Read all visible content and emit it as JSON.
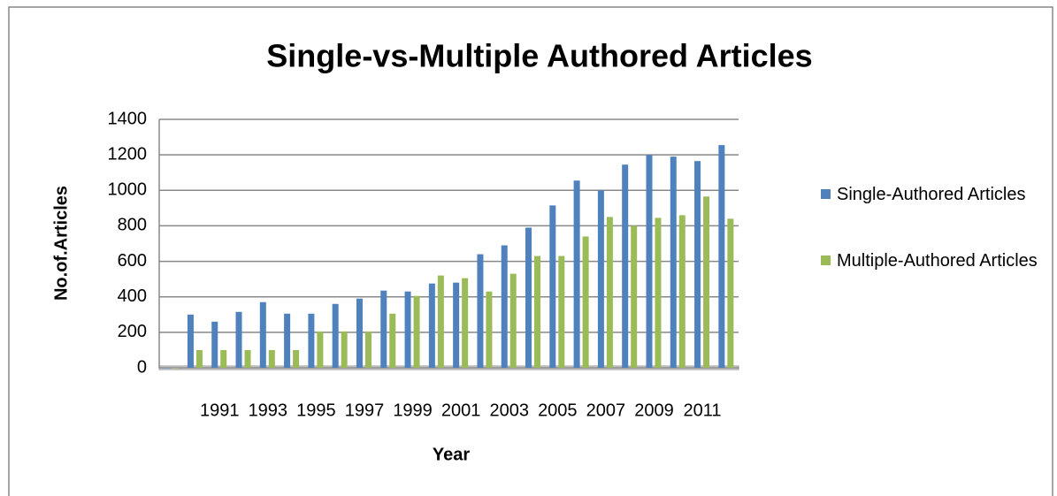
{
  "chart_data": {
    "type": "bar",
    "title": "Single-vs-Multiple Authored Articles",
    "x_label": "Year",
    "y_label": "No.of.Articles",
    "categories": [
      null,
      null,
      "1991",
      null,
      "1993",
      null,
      "1995",
      null,
      "1997",
      null,
      "1999",
      null,
      "2001",
      null,
      "2003",
      null,
      "2005",
      null,
      "2007",
      null,
      "2009",
      null,
      "2011",
      null
    ],
    "series": [
      {
        "name": "Single-Authored Articles",
        "color": "#4f81bd",
        "values": [
          0,
          300,
          260,
          315,
          370,
          305,
          305,
          360,
          390,
          435,
          430,
          475,
          480,
          640,
          690,
          790,
          915,
          1055,
          1000,
          1145,
          1200,
          1190,
          1165,
          1255
        ]
      },
      {
        "name": "Multiple-Authored Articles",
        "color": "#9bbb59",
        "values": [
          0,
          100,
          100,
          100,
          100,
          100,
          205,
          205,
          205,
          305,
          405,
          520,
          505,
          430,
          530,
          630,
          630,
          740,
          850,
          800,
          845,
          860,
          965,
          840
        ]
      }
    ],
    "ylim": [
      0,
      1400
    ],
    "yticks": [
      0,
      200,
      400,
      600,
      800,
      1000,
      1200,
      1400
    ],
    "grid": true,
    "legend": "right"
  }
}
